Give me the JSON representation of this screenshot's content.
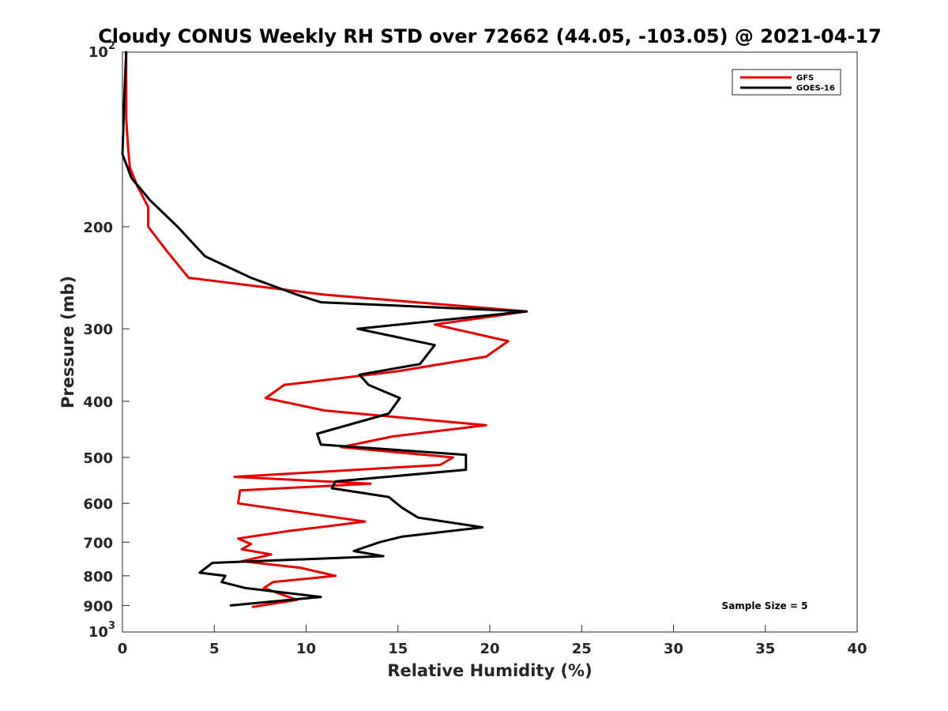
{
  "chart_data": {
    "type": "line",
    "title": "Cloudy CONUS Weekly RH STD over 72662 (44.05, -103.05) @ 2021-04-17",
    "xlabel": "Relative Humidity (%)",
    "ylabel": "Pressure (mb)",
    "xlim": [
      0,
      40
    ],
    "ylim": [
      100,
      1000
    ],
    "y_scale": "log",
    "y_reversed": true,
    "x_ticks": [
      {
        "value": 0,
        "label": "0"
      },
      {
        "value": 5,
        "label": "5"
      },
      {
        "value": 10,
        "label": "10"
      },
      {
        "value": 15,
        "label": "15"
      },
      {
        "value": 20,
        "label": "20"
      },
      {
        "value": 25,
        "label": "25"
      },
      {
        "value": 30,
        "label": "30"
      },
      {
        "value": 35,
        "label": "35"
      },
      {
        "value": 40,
        "label": "40"
      }
    ],
    "y_ticks": [
      {
        "value": 100,
        "base": "10",
        "exp": "2"
      },
      {
        "value": 200,
        "label": "200"
      },
      {
        "value": 300,
        "label": "300"
      },
      {
        "value": 400,
        "label": "400"
      },
      {
        "value": 500,
        "label": "500"
      },
      {
        "value": 600,
        "label": "600"
      },
      {
        "value": 700,
        "label": "700"
      },
      {
        "value": 800,
        "label": "800"
      },
      {
        "value": 900,
        "label": "900"
      },
      {
        "value": 1000,
        "base": "10",
        "exp": "3"
      }
    ],
    "grid": false,
    "legend_position": "top-right",
    "annotation": "Sample Size = 5",
    "series": [
      {
        "name": "GFS",
        "color": "#e60000",
        "points": [
          [
            0.2,
            100
          ],
          [
            0.2,
            115
          ],
          [
            0.2,
            130
          ],
          [
            0.3,
            145
          ],
          [
            0.4,
            158
          ],
          [
            0.8,
            170
          ],
          [
            1.4,
            185
          ],
          [
            1.4,
            200
          ],
          [
            2.4,
            220
          ],
          [
            3.6,
            245
          ],
          [
            11.0,
            262
          ],
          [
            22.0,
            280
          ],
          [
            17.0,
            295
          ],
          [
            21.0,
            315
          ],
          [
            19.8,
            335
          ],
          [
            15.0,
            355
          ],
          [
            8.8,
            375
          ],
          [
            7.8,
            395
          ],
          [
            11.0,
            415
          ],
          [
            19.8,
            440
          ],
          [
            14.7,
            460
          ],
          [
            11.9,
            480
          ],
          [
            18.0,
            500
          ],
          [
            17.3,
            515
          ],
          [
            6.1,
            540
          ],
          [
            13.5,
            555
          ],
          [
            6.4,
            570
          ],
          [
            6.3,
            600
          ],
          [
            13.2,
            645
          ],
          [
            9.0,
            670
          ],
          [
            6.3,
            690
          ],
          [
            7.0,
            705
          ],
          [
            6.5,
            720
          ],
          [
            8.1,
            735
          ],
          [
            6.5,
            755
          ],
          [
            9.7,
            775
          ],
          [
            11.6,
            800
          ],
          [
            8.2,
            820
          ],
          [
            7.7,
            840
          ],
          [
            9.5,
            880
          ],
          [
            7.1,
            905
          ]
        ]
      },
      {
        "name": "GOES-16",
        "color": "#000000",
        "points": [
          [
            0.2,
            100
          ],
          [
            0.1,
            120
          ],
          [
            0.0,
            150
          ],
          [
            0.5,
            165
          ],
          [
            1.5,
            180
          ],
          [
            3.0,
            200
          ],
          [
            4.5,
            225
          ],
          [
            7.0,
            245
          ],
          [
            9.5,
            262
          ],
          [
            10.8,
            270
          ],
          [
            22.0,
            280
          ],
          [
            12.8,
            300
          ],
          [
            17.0,
            320
          ],
          [
            16.2,
            345
          ],
          [
            12.9,
            360
          ],
          [
            13.4,
            375
          ],
          [
            15.1,
            395
          ],
          [
            14.5,
            420
          ],
          [
            10.6,
            455
          ],
          [
            10.8,
            475
          ],
          [
            18.7,
            495
          ],
          [
            18.7,
            525
          ],
          [
            11.6,
            550
          ],
          [
            11.4,
            565
          ],
          [
            14.5,
            585
          ],
          [
            15.2,
            610
          ],
          [
            16.1,
            635
          ],
          [
            19.6,
            660
          ],
          [
            15.2,
            685
          ],
          [
            14.0,
            700
          ],
          [
            12.6,
            725
          ],
          [
            14.2,
            740
          ],
          [
            4.9,
            760
          ],
          [
            4.2,
            790
          ],
          [
            5.6,
            800
          ],
          [
            5.4,
            820
          ],
          [
            6.7,
            840
          ],
          [
            10.8,
            870
          ],
          [
            5.9,
            900
          ]
        ]
      }
    ]
  }
}
